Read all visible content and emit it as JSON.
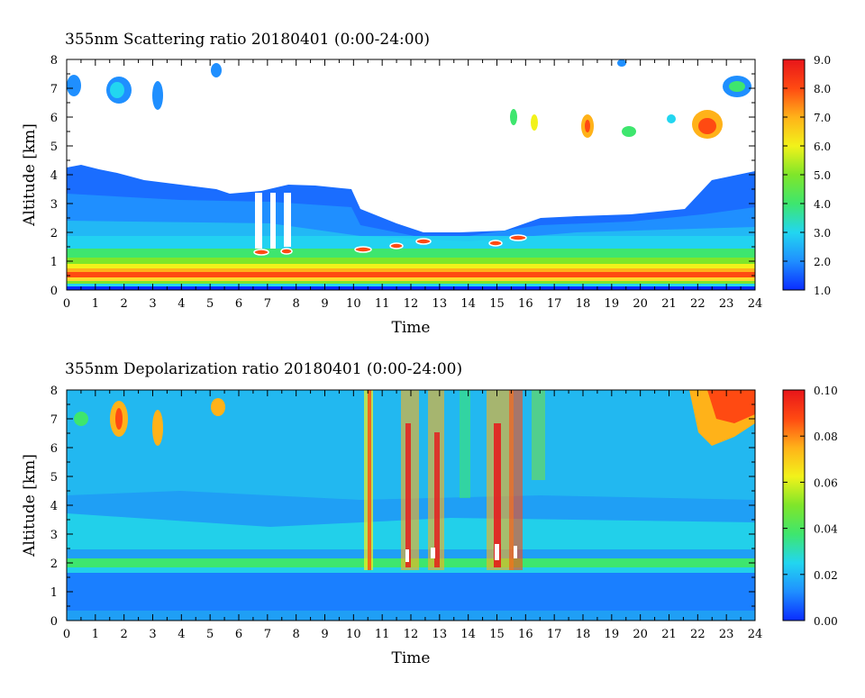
{
  "chart_data": [
    {
      "type": "heatmap",
      "title": "355nm Scattering ratio  20180401 (0:00-24:00)",
      "xlabel": "Time",
      "ylabel": "Altitude [km]",
      "xlim": [
        0,
        24
      ],
      "ylim": [
        0,
        8
      ],
      "x_ticks": [
        "0",
        "1",
        "2",
        "3",
        "4",
        "5",
        "6",
        "7",
        "8",
        "9",
        "10",
        "11",
        "12",
        "13",
        "14",
        "15",
        "16",
        "17",
        "18",
        "19",
        "20",
        "21",
        "22",
        "23",
        "24"
      ],
      "y_ticks": [
        "0",
        "1",
        "2",
        "3",
        "4",
        "5",
        "6",
        "7",
        "8"
      ],
      "colorbar": {
        "range": [
          1.0,
          9.0
        ],
        "ticks": [
          "1.0",
          "2.0",
          "3.0",
          "4.0",
          "5.0",
          "6.0",
          "7.0",
          "8.0",
          "9.0"
        ],
        "colormap": [
          "#0a2cff",
          "#1f8fff",
          "#22d6f0",
          "#3ee66e",
          "#7fe62a",
          "#f2f21a",
          "#ffb219",
          "#ff4a12",
          "#e8151a"
        ]
      },
      "description": "Low layer 0-1.5 km with values 3-8; boundary layer 1.5-4 km values 2-3; sparse clouds 6-8 km values 4-9; white means no data above the layer."
    },
    {
      "type": "heatmap",
      "title": "355nm Depolarization ratio  20180401 (0:00-24:00)",
      "xlabel": "Time",
      "ylabel": "Altitude [km]",
      "xlim": [
        0,
        24
      ],
      "ylim": [
        0,
        8
      ],
      "x_ticks": [
        "0",
        "1",
        "2",
        "3",
        "4",
        "5",
        "6",
        "7",
        "8",
        "9",
        "10",
        "11",
        "12",
        "13",
        "14",
        "15",
        "16",
        "17",
        "18",
        "19",
        "20",
        "21",
        "22",
        "23",
        "24"
      ],
      "y_ticks": [
        "0",
        "1",
        "2",
        "3",
        "4",
        "5",
        "6",
        "7",
        "8"
      ],
      "colorbar": {
        "range": [
          0.0,
          0.1
        ],
        "ticks": [
          "0.00",
          "0.02",
          "0.04",
          "0.06",
          "0.08",
          "0.10"
        ],
        "colormap": [
          "#0a2cff",
          "#1f8fff",
          "#22d6f0",
          "#3ee66e",
          "#7fe62a",
          "#f2f21a",
          "#ffb219",
          "#ff4a12",
          "#e8151a"
        ]
      },
      "description": "Background values about 0.02-0.03; layer near 2 km around 0.04; streaks 10.5-16 h reaching 0.1 at 2-8 km; high clouds at 22-24 h near 0.08-0.1."
    }
  ]
}
